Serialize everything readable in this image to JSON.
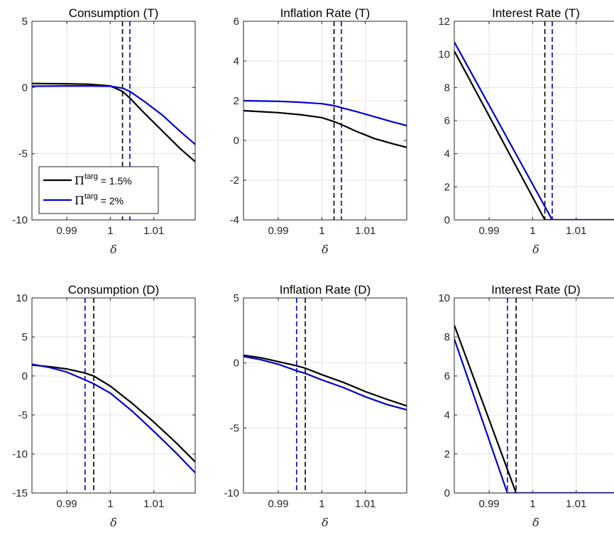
{
  "chart_data": [
    {
      "type": "line",
      "title": "Consumption (T)",
      "xlabel": "δ",
      "xlim": [
        0.982,
        1.0195
      ],
      "ylim": [
        -10,
        5
      ],
      "xticks": [
        0.99,
        1,
        1.01
      ],
      "xtick_labels": [
        "0.99",
        "1",
        "1.01"
      ],
      "yticks": [
        -10,
        -5,
        0,
        5
      ],
      "ytick_labels": [
        "-10",
        "-5",
        "0",
        "5"
      ],
      "grid": true,
      "legend": {
        "placement": "lower-left",
        "entries": [
          {
            "symbol": "Π",
            "sup": "targ",
            "text": "= 1.5%",
            "color": "#000000"
          },
          {
            "symbol": "Π",
            "sup": "targ",
            "text": "= 2%",
            "color": "#0000cc"
          }
        ]
      },
      "vlines": [
        {
          "x": 1.0028,
          "color": "#000000",
          "style": "dashed"
        },
        {
          "x": 1.0045,
          "color": "#0000cc",
          "style": "dashed"
        }
      ],
      "series": [
        {
          "name": "Πtarg = 1.5%",
          "color": "#000000",
          "x": [
            0.982,
            0.99,
            0.995,
            1.0,
            1.0028,
            1.0045,
            1.008,
            1.012,
            1.016,
            1.0195
          ],
          "y": [
            0.3,
            0.28,
            0.25,
            0.12,
            -0.3,
            -0.8,
            -2.0,
            -3.3,
            -4.6,
            -5.6
          ]
        },
        {
          "name": "Πtarg = 2%",
          "color": "#0000cc",
          "x": [
            0.982,
            0.99,
            0.995,
            1.0,
            1.0028,
            1.0045,
            1.008,
            1.012,
            1.016,
            1.0195
          ],
          "y": [
            0.1,
            0.12,
            0.12,
            0.1,
            -0.05,
            -0.3,
            -1.1,
            -2.1,
            -3.3,
            -4.3
          ]
        }
      ]
    },
    {
      "type": "line",
      "title": "Inflation Rate (T)",
      "xlabel": "δ",
      "xlim": [
        0.982,
        1.0195
      ],
      "ylim": [
        -4,
        6
      ],
      "xticks": [
        0.99,
        1,
        1.01
      ],
      "xtick_labels": [
        "0.99",
        "1",
        "1.01"
      ],
      "yticks": [
        -4,
        -2,
        0,
        2,
        4,
        6
      ],
      "ytick_labels": [
        "-4",
        "-2",
        "0",
        "2",
        "4",
        "6"
      ],
      "grid": true,
      "vlines": [
        {
          "x": 1.0028,
          "color": "#000000",
          "style": "dashed"
        },
        {
          "x": 1.0045,
          "color": "#0000cc",
          "style": "dashed"
        }
      ],
      "series": [
        {
          "color": "#000000",
          "x": [
            0.982,
            0.99,
            0.995,
            1.0,
            1.0028,
            1.0045,
            1.008,
            1.012,
            1.016,
            1.0195
          ],
          "y": [
            1.5,
            1.4,
            1.3,
            1.15,
            0.95,
            0.8,
            0.45,
            0.1,
            -0.15,
            -0.35
          ]
        },
        {
          "color": "#0000cc",
          "x": [
            0.982,
            0.99,
            0.995,
            1.0,
            1.0028,
            1.0045,
            1.008,
            1.012,
            1.016,
            1.0195
          ],
          "y": [
            2.0,
            1.97,
            1.92,
            1.85,
            1.75,
            1.65,
            1.45,
            1.2,
            0.95,
            0.75
          ]
        }
      ]
    },
    {
      "type": "line",
      "title": "Interest Rate (T)",
      "xlabel": "δ",
      "xlim": [
        0.982,
        1.0195
      ],
      "ylim": [
        0,
        12
      ],
      "xticks": [
        0.99,
        1,
        1.01
      ],
      "xtick_labels": [
        "0.99",
        "1",
        "1.01"
      ],
      "yticks": [
        0,
        2,
        4,
        6,
        8,
        10,
        12
      ],
      "ytick_labels": [
        "0",
        "2",
        "4",
        "6",
        "8",
        "10",
        "12"
      ],
      "grid": true,
      "vlines": [
        {
          "x": 1.0028,
          "color": "#000000",
          "style": "dashed"
        },
        {
          "x": 1.0045,
          "color": "#0000cc",
          "style": "dashed"
        }
      ],
      "series": [
        {
          "color": "#000000",
          "x": [
            0.982,
            1.0028,
            1.0045,
            1.0195
          ],
          "y": [
            10.2,
            0.0,
            0.0,
            0.0
          ]
        },
        {
          "color": "#0000cc",
          "x": [
            0.982,
            1.0045,
            1.0195
          ],
          "y": [
            10.75,
            0.0,
            0.0
          ]
        }
      ]
    },
    {
      "type": "line",
      "title": "Consumption (D)",
      "xlabel": "δ",
      "xlim": [
        0.982,
        1.0195
      ],
      "ylim": [
        -15,
        10
      ],
      "xticks": [
        0.99,
        1,
        1.01
      ],
      "xtick_labels": [
        "0.99",
        "1",
        "1.01"
      ],
      "yticks": [
        -15,
        -10,
        -5,
        0,
        5,
        10
      ],
      "ytick_labels": [
        "-15",
        "-10",
        "-5",
        "0",
        "5",
        "10"
      ],
      "grid": true,
      "vlines": [
        {
          "x": 0.9962,
          "color": "#000000",
          "style": "dashed"
        },
        {
          "x": 0.9942,
          "color": "#0000cc",
          "style": "dashed"
        }
      ],
      "series": [
        {
          "color": "#000000",
          "x": [
            0.982,
            0.986,
            0.99,
            0.994,
            0.9962,
            1.0,
            1.005,
            1.01,
            1.015,
            1.0195
          ],
          "y": [
            1.4,
            1.2,
            0.9,
            0.4,
            0.0,
            -1.3,
            -3.5,
            -5.9,
            -8.5,
            -11.0
          ]
        },
        {
          "color": "#0000cc",
          "x": [
            0.982,
            0.986,
            0.99,
            0.9942,
            0.9962,
            1.0,
            1.005,
            1.01,
            1.015,
            1.0195
          ],
          "y": [
            1.5,
            1.1,
            0.5,
            -0.5,
            -1.0,
            -2.2,
            -4.5,
            -7.1,
            -9.8,
            -12.4
          ]
        }
      ]
    },
    {
      "type": "line",
      "title": "Inflation Rate (D)",
      "xlabel": "δ",
      "xlim": [
        0.982,
        1.0195
      ],
      "ylim": [
        -10,
        5
      ],
      "xticks": [
        0.99,
        1,
        1.01
      ],
      "xtick_labels": [
        "0.99",
        "1",
        "1.01"
      ],
      "yticks": [
        -10,
        -5,
        0,
        5
      ],
      "ytick_labels": [
        "-10",
        "-5",
        "0",
        "5"
      ],
      "grid": true,
      "vlines": [
        {
          "x": 0.9962,
          "color": "#000000",
          "style": "dashed"
        },
        {
          "x": 0.9942,
          "color": "#0000cc",
          "style": "dashed"
        }
      ],
      "series": [
        {
          "color": "#000000",
          "x": [
            0.982,
            0.986,
            0.99,
            0.994,
            0.9962,
            1.0,
            1.005,
            1.01,
            1.015,
            1.0195
          ],
          "y": [
            0.6,
            0.4,
            0.1,
            -0.2,
            -0.4,
            -0.9,
            -1.5,
            -2.2,
            -2.8,
            -3.3
          ]
        },
        {
          "color": "#0000cc",
          "x": [
            0.982,
            0.986,
            0.99,
            0.9942,
            0.9962,
            1.0,
            1.005,
            1.01,
            1.015,
            1.0195
          ],
          "y": [
            0.5,
            0.25,
            -0.1,
            -0.6,
            -0.8,
            -1.3,
            -1.9,
            -2.6,
            -3.2,
            -3.6
          ]
        }
      ]
    },
    {
      "type": "line",
      "title": "Interest Rate (D)",
      "xlabel": "δ",
      "xlim": [
        0.982,
        1.0195
      ],
      "ylim": [
        0,
        10
      ],
      "xticks": [
        0.99,
        1,
        1.01
      ],
      "xtick_labels": [
        "0.99",
        "1",
        "1.01"
      ],
      "yticks": [
        0,
        2,
        4,
        6,
        8,
        10
      ],
      "ytick_labels": [
        "0",
        "2",
        "4",
        "6",
        "8",
        "10"
      ],
      "grid": true,
      "vlines": [
        {
          "x": 0.9962,
          "color": "#000000",
          "style": "dashed"
        },
        {
          "x": 0.9942,
          "color": "#0000cc",
          "style": "dashed"
        }
      ],
      "series": [
        {
          "color": "#000000",
          "x": [
            0.982,
            0.9962,
            1.0195
          ],
          "y": [
            8.6,
            0.0,
            0.0
          ]
        },
        {
          "color": "#0000cc",
          "x": [
            0.982,
            0.9942,
            1.0195
          ],
          "y": [
            7.9,
            0.0,
            0.0
          ]
        }
      ]
    }
  ]
}
